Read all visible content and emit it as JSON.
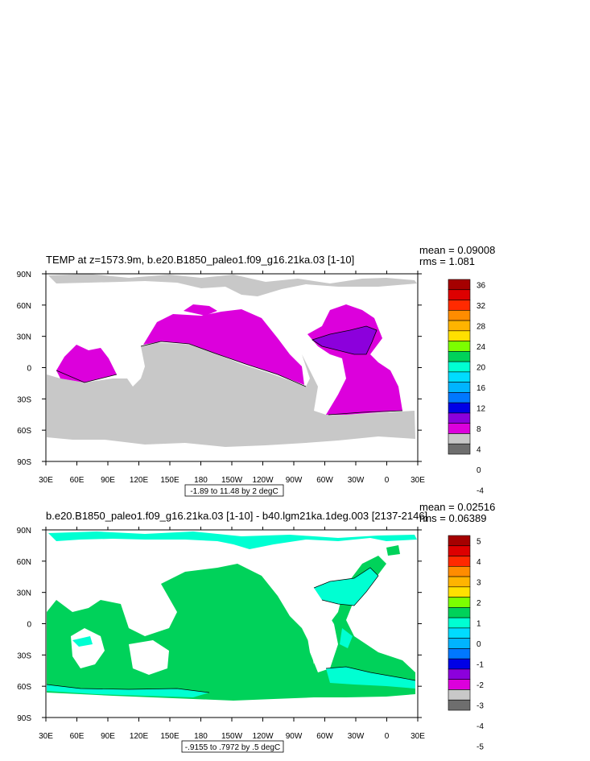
{
  "chart_data": [
    {
      "type": "heatmap",
      "title": "TEMP at z=1573.9m, b.e20.B1850_paleo1.f09_g16.21ka.03 [1-10]",
      "stats": {
        "mean": "mean = 0.09008",
        "rms": "rms = 1.081"
      },
      "x_ticks": [
        "30E",
        "60E",
        "90E",
        "120E",
        "150E",
        "180",
        "150W",
        "120W",
        "90W",
        "60W",
        "30W",
        "0",
        "30E"
      ],
      "y_ticks": [
        "90N",
        "60N",
        "30N",
        "0",
        "30S",
        "60S",
        "90S"
      ],
      "contour_info": "-1.89 to 11.48 by 2 degC",
      "colorbar": {
        "labels": [
          "36",
          "32",
          "28",
          "24",
          "20",
          "16",
          "12",
          "8",
          "4",
          "0",
          "-4"
        ],
        "colors": [
          "#a50000",
          "#dd0000",
          "#ff2a00",
          "#ff8c00",
          "#ffb400",
          "#ffe000",
          "#7cff00",
          "#00d25a",
          "#00ffd2",
          "#00dcff",
          "#00b4ff",
          "#0078ff",
          "#0000e6",
          "#8c00dc",
          "#dc00dc",
          "#c8c8c8",
          "#6e6e6e"
        ]
      }
    },
    {
      "type": "heatmap",
      "title": "b.e20.B1850_paleo1.f09_g16.21ka.03 [1-10] - b40.lgm21ka.1deg.003 [2137-2146]",
      "stats": {
        "mean": "mean = 0.02516",
        "rms": "rms = 0.06389"
      },
      "x_ticks": [
        "30E",
        "60E",
        "90E",
        "120E",
        "150E",
        "180",
        "150W",
        "120W",
        "90W",
        "60W",
        "30W",
        "0",
        "30E"
      ],
      "y_ticks": [
        "90N",
        "60N",
        "30N",
        "0",
        "30S",
        "60S",
        "90S"
      ],
      "contour_info": "-.9155 to .7972 by .5 degC",
      "colorbar": {
        "labels": [
          "5",
          "4",
          "3",
          "2",
          "1",
          "0",
          "-1",
          "-2",
          "-3",
          "-4",
          "-5"
        ],
        "colors": [
          "#a50000",
          "#dd0000",
          "#ff2a00",
          "#ff8c00",
          "#ffb400",
          "#ffe000",
          "#7cff00",
          "#00d25a",
          "#00ffd2",
          "#00dcff",
          "#00b4ff",
          "#0078ff",
          "#0000e6",
          "#8c00dc",
          "#dc00dc",
          "#c8c8c8",
          "#6e6e6e"
        ]
      }
    }
  ]
}
